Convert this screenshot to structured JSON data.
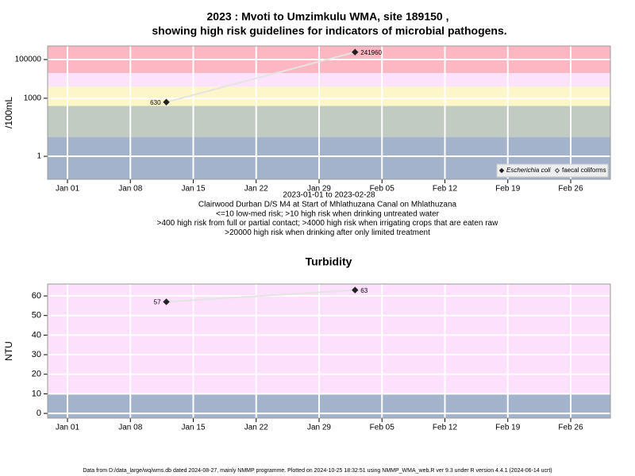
{
  "chart_data": [
    {
      "type": "line",
      "title": "2023 : Mvoti to Umzimkulu WMA, site 189150 ,",
      "subtitle": "showing high risk guidelines for indicators of microbial pathogens.",
      "ylabel": "/100mL",
      "xlabel": "2023-01-01 to 2023-02-28",
      "notes": [
        "Clairwood Durban D/S M4 at Start of Mhlathuzana Canal on Mhlathuzana",
        "<=10 low-med risk; >10 high risk when drinking untreated water",
        ">400 high risk from full or partial contact; >4000 high risk when irrigating crops that are eaten raw",
        ">20000 high risk when drinking after only limited treatment"
      ],
      "ylog": true,
      "ylim": [
        0.065,
        500000
      ],
      "yticks": [
        1,
        1000,
        100000
      ],
      "xlim": [
        "2022-12-29T19:00",
        "2023-03-02T10:00"
      ],
      "xticks": [
        {
          "value": "2023-01-01",
          "label": "Jan 01"
        },
        {
          "value": "2023-01-08",
          "label": "Jan 08"
        },
        {
          "value": "2023-01-15",
          "label": "Jan 15"
        },
        {
          "value": "2023-01-22",
          "label": "Jan 22"
        },
        {
          "value": "2023-01-29",
          "label": "Jan 29"
        },
        {
          "value": "2023-02-05",
          "label": "Feb 05"
        },
        {
          "value": "2023-02-12",
          "label": "Feb 12"
        },
        {
          "value": "2023-02-19",
          "label": "Feb 19"
        },
        {
          "value": "2023-02-26",
          "label": "Feb 26"
        }
      ],
      "grid": true,
      "band_breaks": [
        10,
        400,
        4000,
        20000
      ],
      "band_colors": [
        "#a3b3cb",
        "#c1cbc1",
        "#fdf6c9",
        "#fce2fb",
        "#fdb7c2"
      ],
      "x": [
        "2023-01-12",
        "2023-02-02"
      ],
      "series": [
        {
          "name": "Escherichia coli",
          "color": "#222222",
          "values": [
            630,
            241960
          ]
        },
        {
          "name": "faecal coliforms",
          "color": "#444444",
          "hollow": true,
          "values": [
            null,
            null
          ]
        }
      ],
      "line_color": "#e4e4e4",
      "legend": "bottom-right"
    },
    {
      "type": "line",
      "title": "Turbidity",
      "ylabel": "NTU",
      "ylog": false,
      "ylim": [
        -2.4,
        66.1
      ],
      "yticks": [
        0,
        10,
        20,
        30,
        40,
        50,
        60
      ],
      "xlim": [
        "2022-12-29T19:00",
        "2023-03-02T10:00"
      ],
      "xticks": [
        {
          "value": "2023-01-01",
          "label": "Jan 01"
        },
        {
          "value": "2023-01-08",
          "label": "Jan 08"
        },
        {
          "value": "2023-01-15",
          "label": "Jan 15"
        },
        {
          "value": "2023-01-22",
          "label": "Jan 22"
        },
        {
          "value": "2023-01-29",
          "label": "Jan 29"
        },
        {
          "value": "2023-02-05",
          "label": "Feb 05"
        },
        {
          "value": "2023-02-12",
          "label": "Feb 12"
        },
        {
          "value": "2023-02-19",
          "label": "Feb 19"
        },
        {
          "value": "2023-02-26",
          "label": "Feb 26"
        }
      ],
      "grid": true,
      "band_breaks": [
        10
      ],
      "band_colors": [
        "#a3b3cb",
        "#fde0fc"
      ],
      "x": [
        "2023-01-12",
        "2023-02-02"
      ],
      "series": [
        {
          "name": "Turbidity",
          "color": "#222222",
          "values": [
            57,
            63
          ]
        }
      ],
      "line_color": "#e4e4e4"
    }
  ],
  "footer": "Data from D:/data_large/wq/wms.db dated 2024-08-27, mainly NMMP programme. Plotted on 2024-10-25 18:32:51 using NMMP_WMA_web.R ver 9.3 under R version 4.4.1 (2024-06-14 ucrt)"
}
